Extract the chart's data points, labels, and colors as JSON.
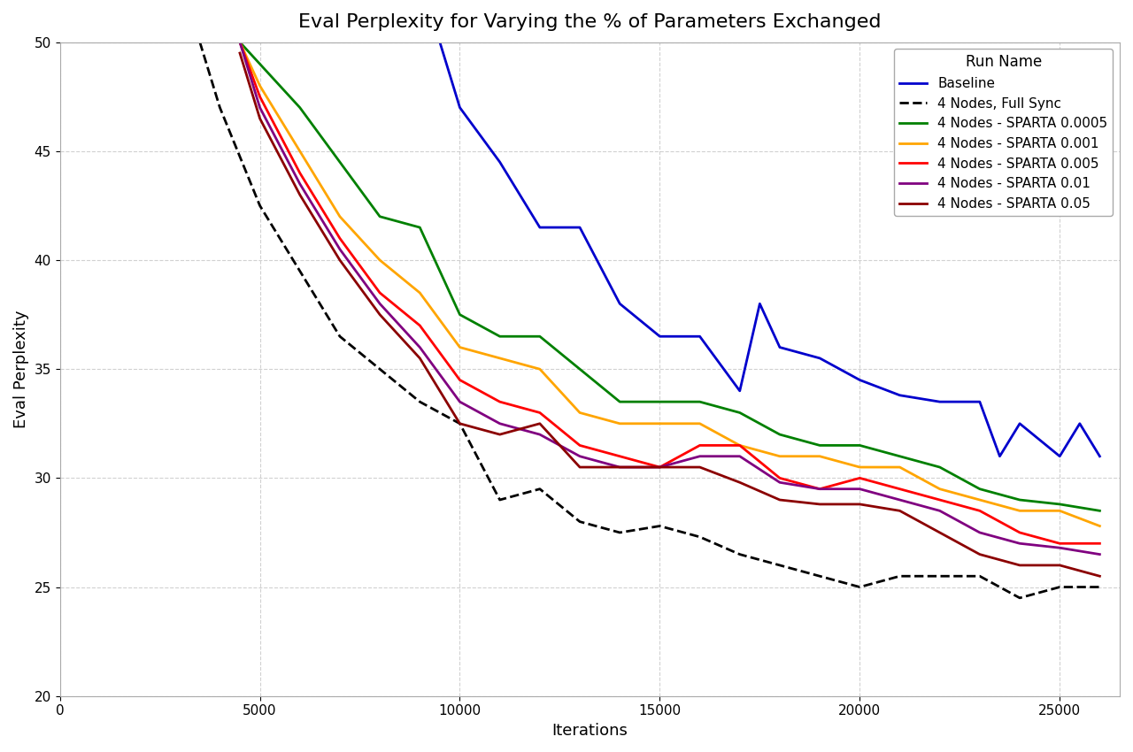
{
  "title": "Eval Perplexity for Varying the % of Parameters Exchanged",
  "xlabel": "Iterations",
  "ylabel": "Eval Perplexity",
  "ylim": [
    20,
    50
  ],
  "xlim": [
    0,
    26500
  ],
  "legend_title": "Run Name",
  "background_color": "#ffffff",
  "series": [
    {
      "label": "Baseline",
      "color": "#0000cc",
      "linestyle": "solid",
      "linewidth": 2.0,
      "x": [
        9500,
        10000,
        11000,
        12000,
        13000,
        14000,
        15000,
        16000,
        17000,
        17500,
        18000,
        19000,
        20000,
        21000,
        22000,
        23000,
        23500,
        24000,
        25000,
        25500,
        26000
      ],
      "y": [
        50.0,
        47.0,
        44.5,
        41.5,
        41.5,
        38.0,
        36.5,
        36.5,
        34.0,
        38.0,
        36.0,
        35.5,
        34.5,
        33.8,
        33.5,
        33.5,
        31.0,
        32.5,
        31.0,
        32.5,
        31.0
      ]
    },
    {
      "label": "4 Nodes, Full Sync",
      "color": "#000000",
      "linestyle": "dashed",
      "linewidth": 2.0,
      "x": [
        3500,
        4000,
        5000,
        6000,
        7000,
        8000,
        9000,
        10000,
        11000,
        12000,
        13000,
        14000,
        15000,
        16000,
        17000,
        18000,
        19000,
        20000,
        21000,
        22000,
        23000,
        24000,
        25000,
        26000
      ],
      "y": [
        50.0,
        47.0,
        42.5,
        39.5,
        36.5,
        35.0,
        33.5,
        32.5,
        29.0,
        29.5,
        28.0,
        27.5,
        27.8,
        27.3,
        26.5,
        26.0,
        25.5,
        25.0,
        25.5,
        25.5,
        25.5,
        24.5,
        25.0,
        25.0
      ]
    },
    {
      "label": "4 Nodes - SPARTA 0.0005",
      "color": "#008000",
      "linestyle": "solid",
      "linewidth": 2.0,
      "x": [
        4500,
        5000,
        6000,
        7000,
        8000,
        9000,
        10000,
        11000,
        12000,
        13000,
        14000,
        15000,
        16000,
        17000,
        18000,
        19000,
        20000,
        21000,
        22000,
        23000,
        24000,
        25000,
        26000
      ],
      "y": [
        50.0,
        49.0,
        47.0,
        44.5,
        42.0,
        41.5,
        37.5,
        36.5,
        36.5,
        35.0,
        33.5,
        33.5,
        33.5,
        33.0,
        32.0,
        31.5,
        31.5,
        31.0,
        30.5,
        29.5,
        29.0,
        28.8,
        28.5
      ]
    },
    {
      "label": "4 Nodes - SPARTA 0.001",
      "color": "#ffa500",
      "linestyle": "solid",
      "linewidth": 2.0,
      "x": [
        4500,
        5000,
        6000,
        7000,
        8000,
        9000,
        10000,
        11000,
        12000,
        13000,
        14000,
        15000,
        16000,
        17000,
        18000,
        19000,
        20000,
        21000,
        22000,
        23000,
        24000,
        25000,
        26000
      ],
      "y": [
        50.0,
        48.0,
        45.0,
        42.0,
        40.0,
        38.5,
        36.0,
        35.5,
        35.0,
        33.0,
        32.5,
        32.5,
        32.5,
        31.5,
        31.0,
        31.0,
        30.5,
        30.5,
        29.5,
        29.0,
        28.5,
        28.5,
        27.8
      ]
    },
    {
      "label": "4 Nodes - SPARTA 0.005",
      "color": "#ff0000",
      "linestyle": "solid",
      "linewidth": 2.0,
      "x": [
        4500,
        5000,
        6000,
        7000,
        8000,
        9000,
        10000,
        11000,
        12000,
        13000,
        14000,
        15000,
        16000,
        17000,
        18000,
        19000,
        20000,
        21000,
        22000,
        23000,
        24000,
        25000,
        26000
      ],
      "y": [
        50.0,
        47.5,
        44.0,
        41.0,
        38.5,
        37.0,
        34.5,
        33.5,
        33.0,
        31.5,
        31.0,
        30.5,
        31.5,
        31.5,
        30.0,
        29.5,
        30.0,
        29.5,
        29.0,
        28.5,
        27.5,
        27.0,
        27.0
      ]
    },
    {
      "label": "4 Nodes - SPARTA 0.01",
      "color": "#800080",
      "linestyle": "solid",
      "linewidth": 2.0,
      "x": [
        4500,
        5000,
        6000,
        7000,
        8000,
        9000,
        10000,
        11000,
        12000,
        13000,
        14000,
        15000,
        16000,
        17000,
        18000,
        19000,
        20000,
        21000,
        22000,
        23000,
        24000,
        25000,
        26000
      ],
      "y": [
        50.0,
        47.0,
        43.5,
        40.5,
        38.0,
        36.0,
        33.5,
        32.5,
        32.0,
        31.0,
        30.5,
        30.5,
        31.0,
        31.0,
        29.8,
        29.5,
        29.5,
        29.0,
        28.5,
        27.5,
        27.0,
        26.8,
        26.5
      ]
    },
    {
      "label": "4 Nodes - SPARTA 0.05",
      "color": "#8b0000",
      "linestyle": "solid",
      "linewidth": 2.0,
      "x": [
        4500,
        5000,
        6000,
        7000,
        8000,
        9000,
        10000,
        11000,
        12000,
        13000,
        14000,
        15000,
        16000,
        17000,
        18000,
        19000,
        20000,
        21000,
        22000,
        23000,
        24000,
        25000,
        26000
      ],
      "y": [
        49.5,
        46.5,
        43.0,
        40.0,
        37.5,
        35.5,
        32.5,
        32.0,
        32.5,
        30.5,
        30.5,
        30.5,
        30.5,
        29.8,
        29.0,
        28.8,
        28.8,
        28.5,
        27.5,
        26.5,
        26.0,
        26.0,
        25.5
      ]
    }
  ]
}
